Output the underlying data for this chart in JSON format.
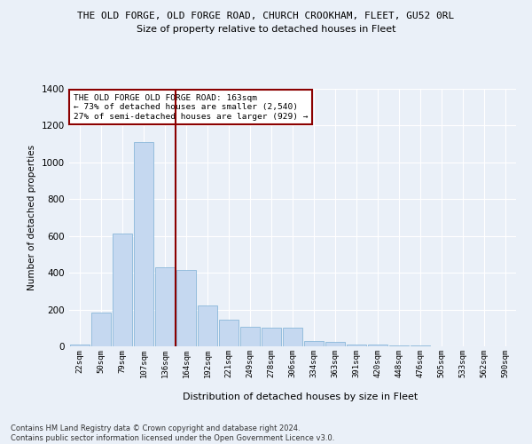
{
  "title_line1": "THE OLD FORGE, OLD FORGE ROAD, CHURCH CROOKHAM, FLEET, GU52 0RL",
  "title_line2": "Size of property relative to detached houses in Fleet",
  "xlabel": "Distribution of detached houses by size in Fleet",
  "ylabel": "Number of detached properties",
  "categories": [
    "22sqm",
    "50sqm",
    "79sqm",
    "107sqm",
    "136sqm",
    "164sqm",
    "192sqm",
    "221sqm",
    "249sqm",
    "278sqm",
    "306sqm",
    "334sqm",
    "363sqm",
    "391sqm",
    "420sqm",
    "448sqm",
    "476sqm",
    "505sqm",
    "533sqm",
    "562sqm",
    "590sqm"
  ],
  "values": [
    12,
    185,
    615,
    1110,
    430,
    415,
    220,
    145,
    105,
    100,
    100,
    30,
    25,
    10,
    10,
    5,
    5,
    0,
    0,
    0,
    0
  ],
  "bar_color": "#c5d8f0",
  "bar_edge_color": "#7bafd4",
  "vline_color": "#8b0000",
  "annotation_text": "THE OLD FORGE OLD FORGE ROAD: 163sqm\n← 73% of detached houses are smaller (2,540)\n27% of semi-detached houses are larger (929) →",
  "annotation_box_color": "white",
  "annotation_box_edgecolor": "#8b0000",
  "ylim": [
    0,
    1400
  ],
  "yticks": [
    0,
    200,
    400,
    600,
    800,
    1000,
    1200,
    1400
  ],
  "footer_line1": "Contains HM Land Registry data © Crown copyright and database right 2024.",
  "footer_line2": "Contains public sector information licensed under the Open Government Licence v3.0.",
  "background_color": "#eaf0f8",
  "plot_bg_color": "#eaf0f8",
  "grid_color": "white"
}
